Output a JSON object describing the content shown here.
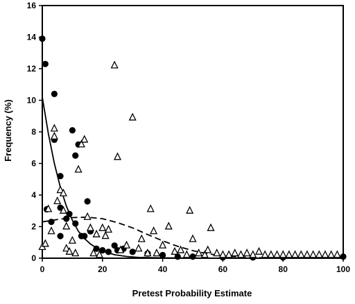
{
  "chart_data": {
    "type": "scatter",
    "xlabel": "Pretest Probability Estimate",
    "ylabel": "Frequency (%)",
    "xlim": [
      0,
      100
    ],
    "ylim": [
      0,
      16
    ],
    "x_ticks": [
      0,
      20,
      40,
      60,
      80,
      100
    ],
    "y_ticks": [
      0,
      2,
      4,
      6,
      8,
      10,
      12,
      14,
      16
    ],
    "grid": false,
    "legend": null,
    "colors": {
      "axis": "#000000",
      "marker": "#000000"
    },
    "series": [
      {
        "marker": "filled-circle",
        "points": [
          [
            0,
            13.9
          ],
          [
            1,
            12.3
          ],
          [
            1.5,
            3.1
          ],
          [
            3,
            2.3
          ],
          [
            4,
            7.5
          ],
          [
            4,
            10.4
          ],
          [
            6,
            1.4
          ],
          [
            6,
            5.2
          ],
          [
            6,
            3.2
          ],
          [
            8,
            2.5
          ],
          [
            9,
            2.8
          ],
          [
            10,
            8.1
          ],
          [
            11,
            6.5
          ],
          [
            11,
            2.2
          ],
          [
            12,
            7.2
          ],
          [
            13,
            1.4
          ],
          [
            14,
            1.4
          ],
          [
            15,
            3.6
          ],
          [
            16,
            1.7
          ],
          [
            18,
            0.6
          ],
          [
            20,
            0.5
          ],
          [
            22,
            0.4
          ],
          [
            24,
            0.8
          ],
          [
            25,
            0.5
          ],
          [
            27,
            0.6
          ],
          [
            30,
            0.4
          ],
          [
            35,
            0.3
          ],
          [
            40,
            0.2
          ],
          [
            45,
            0.1
          ],
          [
            50,
            0.1
          ],
          [
            60,
            0.05
          ],
          [
            70,
            0.05
          ],
          [
            80,
            0.05
          ],
          [
            100,
            0.1
          ]
        ]
      },
      {
        "marker": "open-triangle",
        "points": [
          [
            0,
            0.7
          ],
          [
            1,
            0.9
          ],
          [
            2,
            3.1
          ],
          [
            3,
            1.7
          ],
          [
            4,
            8.2
          ],
          [
            4,
            7.7
          ],
          [
            5,
            3.6
          ],
          [
            6,
            4.3
          ],
          [
            7,
            4.1
          ],
          [
            7,
            3.0
          ],
          [
            8,
            0.6
          ],
          [
            8,
            2.0
          ],
          [
            9,
            0.4
          ],
          [
            10,
            1.1
          ],
          [
            11,
            0.3
          ],
          [
            12,
            5.6
          ],
          [
            13,
            7.2
          ],
          [
            14,
            7.5
          ],
          [
            15,
            2.6
          ],
          [
            16,
            1.9
          ],
          [
            17,
            0.3
          ],
          [
            18,
            1.5
          ],
          [
            19,
            0.2
          ],
          [
            20,
            1.9
          ],
          [
            21,
            1.4
          ],
          [
            22,
            1.8
          ],
          [
            24,
            12.2
          ],
          [
            25,
            6.4
          ],
          [
            26,
            0.5
          ],
          [
            28,
            0.8
          ],
          [
            30,
            8.9
          ],
          [
            32,
            0.6
          ],
          [
            33,
            1.2
          ],
          [
            35,
            0.3
          ],
          [
            36,
            3.1
          ],
          [
            37,
            1.7
          ],
          [
            38,
            0.3
          ],
          [
            40,
            0.8
          ],
          [
            42,
            2.0
          ],
          [
            44,
            0.4
          ],
          [
            46,
            0.5
          ],
          [
            48,
            0.2
          ],
          [
            49,
            3.0
          ],
          [
            50,
            1.2
          ],
          [
            52,
            0.3
          ],
          [
            54,
            0.2
          ],
          [
            55,
            0.5
          ],
          [
            56,
            1.9
          ],
          [
            58,
            0.3
          ],
          [
            60,
            0.2
          ],
          [
            62,
            0.2
          ],
          [
            64,
            0.3
          ],
          [
            66,
            0.2
          ],
          [
            68,
            0.3
          ],
          [
            70,
            0.2
          ],
          [
            72,
            0.4
          ],
          [
            74,
            0.2
          ],
          [
            76,
            0.2
          ],
          [
            78,
            0.2
          ],
          [
            80,
            0.2
          ],
          [
            82,
            0.2
          ],
          [
            84,
            0.2
          ],
          [
            86,
            0.2
          ],
          [
            88,
            0.2
          ],
          [
            90,
            0.2
          ],
          [
            92,
            0.2
          ],
          [
            94,
            0.2
          ],
          [
            96,
            0.2
          ],
          [
            98,
            0.2
          ]
        ]
      }
    ],
    "fitted_curves": [
      {
        "style": "solid",
        "points": [
          [
            0,
            10.2
          ],
          [
            2,
            7.9
          ],
          [
            4,
            6.0
          ],
          [
            6,
            4.5
          ],
          [
            8,
            3.3
          ],
          [
            10,
            2.4
          ],
          [
            12,
            1.7
          ],
          [
            14,
            1.25
          ],
          [
            16,
            0.9
          ],
          [
            18,
            0.65
          ],
          [
            20,
            0.45
          ],
          [
            24,
            0.22
          ],
          [
            28,
            0.11
          ],
          [
            32,
            0.05
          ],
          [
            40,
            0.02
          ],
          [
            50,
            0.01
          ],
          [
            60,
            0.0
          ],
          [
            100,
            0.0
          ]
        ]
      },
      {
        "style": "dashed",
        "points": [
          [
            0,
            2.3
          ],
          [
            5,
            2.45
          ],
          [
            10,
            2.57
          ],
          [
            15,
            2.6
          ],
          [
            20,
            2.5
          ],
          [
            25,
            2.25
          ],
          [
            30,
            1.92
          ],
          [
            35,
            1.5
          ],
          [
            40,
            1.1
          ],
          [
            45,
            0.75
          ],
          [
            50,
            0.48
          ],
          [
            55,
            0.28
          ],
          [
            60,
            0.15
          ],
          [
            65,
            0.08
          ],
          [
            70,
            0.04
          ],
          [
            80,
            0.01
          ],
          [
            100,
            0.0
          ]
        ]
      }
    ]
  }
}
